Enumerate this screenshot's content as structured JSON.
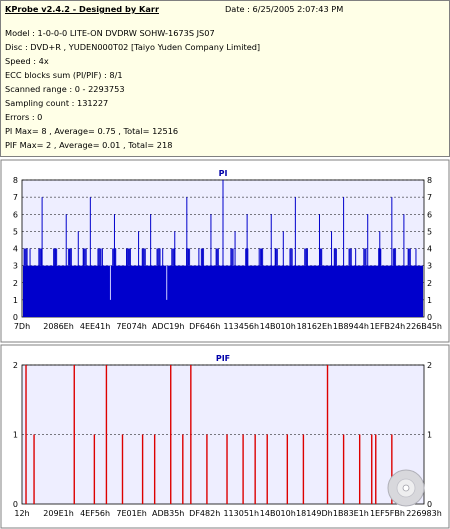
{
  "header": {
    "title": "KProbe v2.4.2 - Designed by Karr",
    "date": "Date : 6/25/2005 2:07:43 PM"
  },
  "info_lines": [
    "Model : 1-0-0-0 LITE-ON DVDRW SOHW-1673S JS07",
    "Disc : DVD+R , YUDEN000T02 [Taiyo Yuden Company Limited]",
    "Speed : 4x",
    "ECC blocks sum (PI/PIF) : 8/1",
    "Scanned range : 0 - 2293753",
    "Sampling count : 131227",
    "Errors : 0",
    "PI Max= 8 , Average= 0.75 , Total= 12516",
    "PIF Max= 2 , Average= 0.01 , Total= 218"
  ],
  "colors": {
    "pi_series": "#0000cc",
    "pif_series": "#dd0000",
    "plot_background": "#eeeeff",
    "info_background": "#ffffe7"
  },
  "chart_data": [
    {
      "type": "bar",
      "title": "PI",
      "ylim": [
        0,
        8
      ],
      "yticks": [
        0,
        1,
        2,
        3,
        4,
        5,
        6,
        7,
        8
      ],
      "x_tick_labels": [
        "7Dh",
        "2086Eh",
        "4EE41h",
        "7E074h",
        "ADC19h",
        "DF646h",
        "113456h",
        "14B010h",
        "18162Eh",
        "1B8944h",
        "1EFB24h",
        "226B45h"
      ],
      "grid": true,
      "baseline_level": 3,
      "spikes": [
        {
          "x": 0.02,
          "y": 4
        },
        {
          "x": 0.05,
          "y": 7
        },
        {
          "x": 0.08,
          "y": 4
        },
        {
          "x": 0.11,
          "y": 6
        },
        {
          "x": 0.14,
          "y": 5
        },
        {
          "x": 0.17,
          "y": 7
        },
        {
          "x": 0.2,
          "y": 4
        },
        {
          "x": 0.23,
          "y": 6
        },
        {
          "x": 0.26,
          "y": 4
        },
        {
          "x": 0.29,
          "y": 5
        },
        {
          "x": 0.32,
          "y": 6
        },
        {
          "x": 0.35,
          "y": 4
        },
        {
          "x": 0.38,
          "y": 5
        },
        {
          "x": 0.41,
          "y": 7
        },
        {
          "x": 0.44,
          "y": 4
        },
        {
          "x": 0.47,
          "y": 6
        },
        {
          "x": 0.5,
          "y": 8
        },
        {
          "x": 0.53,
          "y": 5
        },
        {
          "x": 0.56,
          "y": 6
        },
        {
          "x": 0.59,
          "y": 4
        },
        {
          "x": 0.62,
          "y": 6
        },
        {
          "x": 0.65,
          "y": 5
        },
        {
          "x": 0.68,
          "y": 7
        },
        {
          "x": 0.71,
          "y": 4
        },
        {
          "x": 0.74,
          "y": 6
        },
        {
          "x": 0.77,
          "y": 5
        },
        {
          "x": 0.8,
          "y": 7
        },
        {
          "x": 0.83,
          "y": 4
        },
        {
          "x": 0.86,
          "y": 6
        },
        {
          "x": 0.89,
          "y": 5
        },
        {
          "x": 0.92,
          "y": 7
        },
        {
          "x": 0.95,
          "y": 6
        },
        {
          "x": 0.98,
          "y": 4
        }
      ],
      "dips": [
        {
          "x": 0.22,
          "y": 1
        },
        {
          "x": 0.36,
          "y": 1
        }
      ]
    },
    {
      "type": "bar",
      "title": "PIF",
      "ylim": [
        0,
        2
      ],
      "yticks": [
        0,
        1,
        2
      ],
      "x_tick_labels": [
        "12h",
        "209E1h",
        "4EF56h",
        "7E01Eh",
        "ADB35h",
        "DF482h",
        "113051h",
        "14B010h",
        "18149Dh",
        "1B83E1h",
        "1EF5FBh",
        "226983h"
      ],
      "grid": true,
      "bars": [
        {
          "x": 0.01,
          "y": 2
        },
        {
          "x": 0.03,
          "y": 1
        },
        {
          "x": 0.13,
          "y": 2
        },
        {
          "x": 0.18,
          "y": 1
        },
        {
          "x": 0.21,
          "y": 2
        },
        {
          "x": 0.25,
          "y": 1
        },
        {
          "x": 0.3,
          "y": 1
        },
        {
          "x": 0.33,
          "y": 1
        },
        {
          "x": 0.37,
          "y": 2
        },
        {
          "x": 0.4,
          "y": 1
        },
        {
          "x": 0.42,
          "y": 2
        },
        {
          "x": 0.46,
          "y": 1
        },
        {
          "x": 0.51,
          "y": 1
        },
        {
          "x": 0.55,
          "y": 1
        },
        {
          "x": 0.58,
          "y": 1
        },
        {
          "x": 0.61,
          "y": 1
        },
        {
          "x": 0.66,
          "y": 1
        },
        {
          "x": 0.7,
          "y": 1
        },
        {
          "x": 0.76,
          "y": 2
        },
        {
          "x": 0.8,
          "y": 1
        },
        {
          "x": 0.84,
          "y": 1
        },
        {
          "x": 0.87,
          "y": 1
        },
        {
          "x": 0.88,
          "y": 1
        },
        {
          "x": 0.92,
          "y": 1
        }
      ]
    }
  ]
}
